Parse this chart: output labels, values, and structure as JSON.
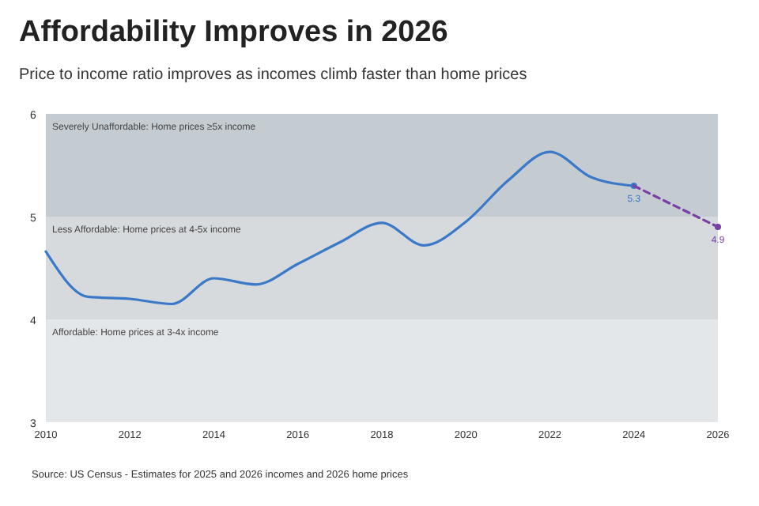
{
  "chart_data": {
    "type": "line",
    "title": "Affordability Improves in 2026",
    "subtitle": "Price to income ratio improves as incomes climb faster than home prices",
    "xlim": [
      2010,
      2026
    ],
    "xticks": [
      2010,
      2012,
      2014,
      2016,
      2018,
      2020,
      2022,
      2024,
      2026
    ],
    "ylim": [
      3,
      6
    ],
    "yticks": [
      3,
      4,
      5,
      6
    ],
    "series": [
      {
        "color": "#3a78c8",
        "line_style": "solid",
        "x": [
          2010,
          2011,
          2012,
          2013,
          2014,
          2015,
          2016,
          2017,
          2018,
          2019,
          2020,
          2021,
          2022,
          2023,
          2024
        ],
        "values": [
          4.66,
          4.22,
          4.2,
          4.15,
          4.4,
          4.34,
          4.54,
          4.75,
          4.94,
          4.72,
          4.95,
          5.35,
          5.63,
          5.38,
          5.3
        ],
        "value_labels": [
          null,
          null,
          null,
          null,
          null,
          null,
          null,
          null,
          null,
          null,
          null,
          null,
          null,
          null,
          "5.3"
        ]
      },
      {
        "color": "#7b3fa8",
        "line_style": "dashed",
        "x": [
          2024,
          2026
        ],
        "values": [
          5.3,
          4.9
        ],
        "value_labels": [
          null,
          "4.9"
        ]
      }
    ],
    "bands": [
      {
        "axis": "y",
        "from": 5,
        "to": 6,
        "label": "Severely Unaffordable: Home prices ≥5x income",
        "color": "#c4ccd2"
      },
      {
        "axis": "y",
        "from": 4,
        "to": 5,
        "label": "Less Affordable: Home prices at 4-5x income",
        "color": "#d6dadd"
      },
      {
        "axis": "y",
        "from": 3,
        "to": 4,
        "label": "Affordable: Home prices at 3-4x income",
        "color": "#e4e7e9"
      }
    ],
    "annotations": [
      "Source: US Census - Estimates for 2025 and 2026 incomes and 2026 home prices"
    ]
  }
}
